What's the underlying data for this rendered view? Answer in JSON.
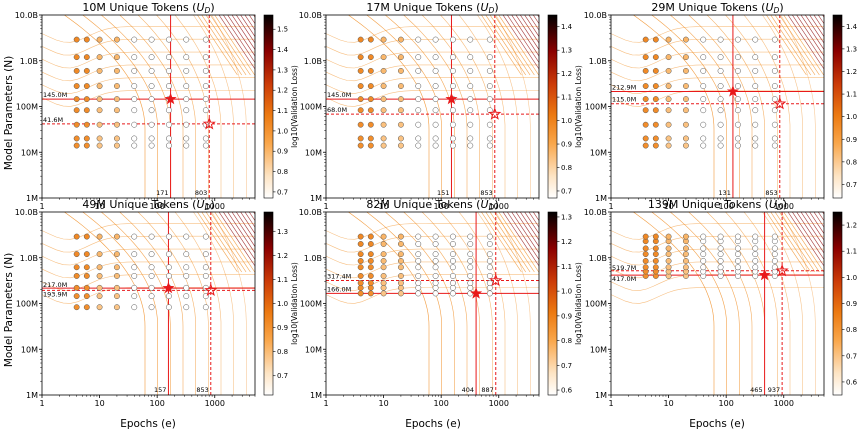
{
  "figure": {
    "ylabel": "Model Parameters (N)",
    "xlabel": "Epochs (e)",
    "colorbar_label": "log10(Validation Loss)",
    "x_ticks": [
      "1",
      "10",
      "100",
      "1000"
    ],
    "y_ticks": [
      "1M",
      "10M",
      "100M",
      "1.0B",
      "10.0B"
    ],
    "title_suffix": " Unique Tokens (",
    "title_var": "U",
    "title_sub": "D",
    "title_close": ")"
  },
  "colors": {
    "point_fill_stops": [
      "#ffffff",
      "#fde4c4",
      "#f9a64a",
      "#ec7a12",
      "#b53a0a",
      "#5c0000",
      "#000000"
    ],
    "line_red": "#e8191a",
    "contour_orange": "#f08a1c",
    "contour_dark": "#8b0000"
  },
  "chart_data": [
    {
      "type": "scatter",
      "title_prefix": "10M",
      "xlim": [
        1,
        5000
      ],
      "ylim": [
        1000000,
        10000000000
      ],
      "colorbar": {
        "range": [
          0.67,
          1.57
        ],
        "ticks": [
          "0.7",
          "0.8",
          "0.9",
          "1.0",
          "1.1",
          "1.2",
          "1.3",
          "1.4",
          "1.5"
        ],
        "tick_values": [
          0.7,
          0.8,
          0.9,
          1.0,
          1.1,
          1.2,
          1.3,
          1.4,
          1.5
        ]
      },
      "model_sizes": [
        14000000,
        20000000,
        40000000,
        83000000,
        145000000,
        280000000,
        600000000,
        1200000000,
        2900000000
      ],
      "epochs": [
        4,
        6,
        10,
        20,
        40,
        80,
        160,
        320,
        700
      ],
      "filled_epoch_max": 6,
      "hline_solid": {
        "value": 145000000,
        "label": "145.0M"
      },
      "hline_dashed": {
        "value": 41600000,
        "label": "41.6M"
      },
      "vline_solid": {
        "value": 171,
        "label": "171"
      },
      "vline_dashed": {
        "value": 803,
        "label": "803"
      },
      "label_order_swap": false
    },
    {
      "type": "scatter",
      "title_prefix": "17M",
      "xlim": [
        1,
        5000
      ],
      "ylim": [
        1000000,
        10000000000
      ],
      "colorbar": {
        "range": [
          0.67,
          1.45
        ],
        "ticks": [
          "0.7",
          "0.8",
          "0.9",
          "1.0",
          "1.1",
          "1.2",
          "1.3",
          "1.4"
        ],
        "tick_values": [
          0.7,
          0.8,
          0.9,
          1.0,
          1.1,
          1.2,
          1.3,
          1.4
        ]
      },
      "model_sizes": [
        14000000,
        20000000,
        40000000,
        83000000,
        145000000,
        280000000,
        600000000,
        1200000000,
        2900000000
      ],
      "epochs": [
        4,
        6,
        10,
        20,
        40,
        80,
        160,
        320,
        700
      ],
      "filled_epoch_max": 6,
      "hline_solid": {
        "value": 145000000,
        "label": "145.0M"
      },
      "hline_dashed": {
        "value": 68000000,
        "label": "68.0M"
      },
      "vline_solid": {
        "value": 151,
        "label": "151"
      },
      "vline_dashed": {
        "value": 853,
        "label": "853"
      },
      "label_order_swap": false
    },
    {
      "type": "scatter",
      "title_prefix": "29M",
      "xlim": [
        1,
        5000
      ],
      "ylim": [
        1000000,
        10000000000
      ],
      "colorbar": {
        "range": [
          0.64,
          1.45
        ],
        "ticks": [
          "0.7",
          "0.8",
          "0.9",
          "1.0",
          "1.1",
          "1.2",
          "1.3",
          "1.4"
        ],
        "tick_values": [
          0.7,
          0.8,
          0.9,
          1.0,
          1.1,
          1.2,
          1.3,
          1.4
        ]
      },
      "model_sizes": [
        14000000,
        20000000,
        40000000,
        83000000,
        145000000,
        280000000,
        600000000,
        1200000000,
        2900000000
      ],
      "epochs": [
        4,
        6,
        10,
        20,
        40,
        80,
        160,
        320,
        700
      ],
      "filled_epoch_max": 6,
      "hline_solid": {
        "value": 212900000,
        "label": "212.9M"
      },
      "hline_dashed": {
        "value": 115000000,
        "label": "115.0M"
      },
      "vline_solid": {
        "value": 131,
        "label": "131"
      },
      "vline_dashed": {
        "value": 853,
        "label": "853"
      },
      "label_order_swap": false
    },
    {
      "type": "scatter",
      "title_prefix": "49M",
      "xlim": [
        1,
        5000
      ],
      "ylim": [
        1000000,
        10000000000
      ],
      "colorbar": {
        "range": [
          0.62,
          1.38
        ],
        "ticks": [
          "0.7",
          "0.8",
          "0.9",
          "1.0",
          "1.1",
          "1.2",
          "1.3"
        ],
        "tick_values": [
          0.7,
          0.8,
          0.9,
          1.0,
          1.1,
          1.2,
          1.3
        ]
      },
      "model_sizes": [
        83000000,
        145000000,
        220000000,
        400000000,
        620000000,
        1200000000,
        2900000000
      ],
      "epochs": [
        4,
        6,
        10,
        20,
        40,
        80,
        160,
        320,
        700
      ],
      "filled_epoch_max": 6,
      "hline_solid": {
        "value": 217000000,
        "label": "217.0M"
      },
      "hline_dashed": {
        "value": 193900000,
        "label": "193.9M"
      },
      "vline_solid": {
        "value": 157,
        "label": "157"
      },
      "vline_dashed": {
        "value": 853,
        "label": "853"
      },
      "label_order_swap": true
    },
    {
      "type": "scatter",
      "title_prefix": "82M",
      "xlim": [
        1,
        5000
      ],
      "ylim": [
        1000000,
        10000000000
      ],
      "colorbar": {
        "range": [
          0.58,
          1.32
        ],
        "ticks": [
          "0.6",
          "0.7",
          "0.8",
          "0.9",
          "1.0",
          "1.1",
          "1.2",
          "1.3"
        ],
        "tick_values": [
          0.6,
          0.7,
          0.8,
          0.9,
          1.0,
          1.1,
          1.2,
          1.3
        ]
      },
      "model_sizes": [
        166000000,
        220000000,
        280000000,
        400000000,
        620000000,
        850000000,
        1200000000,
        2000000000,
        2900000000
      ],
      "epochs": [
        4,
        6,
        10,
        20,
        40,
        80,
        160,
        320,
        700
      ],
      "filled_epoch_max": 6,
      "hline_solid": {
        "value": 166000000,
        "label": "166.0M"
      },
      "hline_dashed": {
        "value": 317400000,
        "label": "317.4M"
      },
      "vline_solid": {
        "value": 404,
        "label": "404"
      },
      "vline_dashed": {
        "value": 887,
        "label": "887"
      },
      "label_order_swap": false
    },
    {
      "type": "scatter",
      "title_prefix": "139M",
      "xlim": [
        1,
        5000
      ],
      "ylim": [
        1000000,
        10000000000
      ],
      "colorbar": {
        "range": [
          0.55,
          1.25
        ],
        "ticks": [
          "0.6",
          "0.7",
          "0.8",
          "0.9",
          "1.0",
          "1.1",
          "1.2"
        ],
        "tick_values": [
          0.6,
          0.7,
          0.8,
          0.9,
          1.0,
          1.1,
          1.2
        ]
      },
      "model_sizes": [
        400000000,
        500000000,
        620000000,
        850000000,
        1200000000,
        1600000000,
        2300000000,
        2900000000
      ],
      "epochs": [
        4,
        6,
        10,
        20,
        40,
        80,
        160,
        320,
        700
      ],
      "filled_epoch_max": 6,
      "hline_solid": {
        "value": 417000000,
        "label": "417.0M"
      },
      "hline_dashed": {
        "value": 519700000,
        "label": "519.7M"
      },
      "vline_solid": {
        "value": 465,
        "label": "465"
      },
      "vline_dashed": {
        "value": 937,
        "label": "937"
      },
      "label_order_swap": false
    }
  ]
}
